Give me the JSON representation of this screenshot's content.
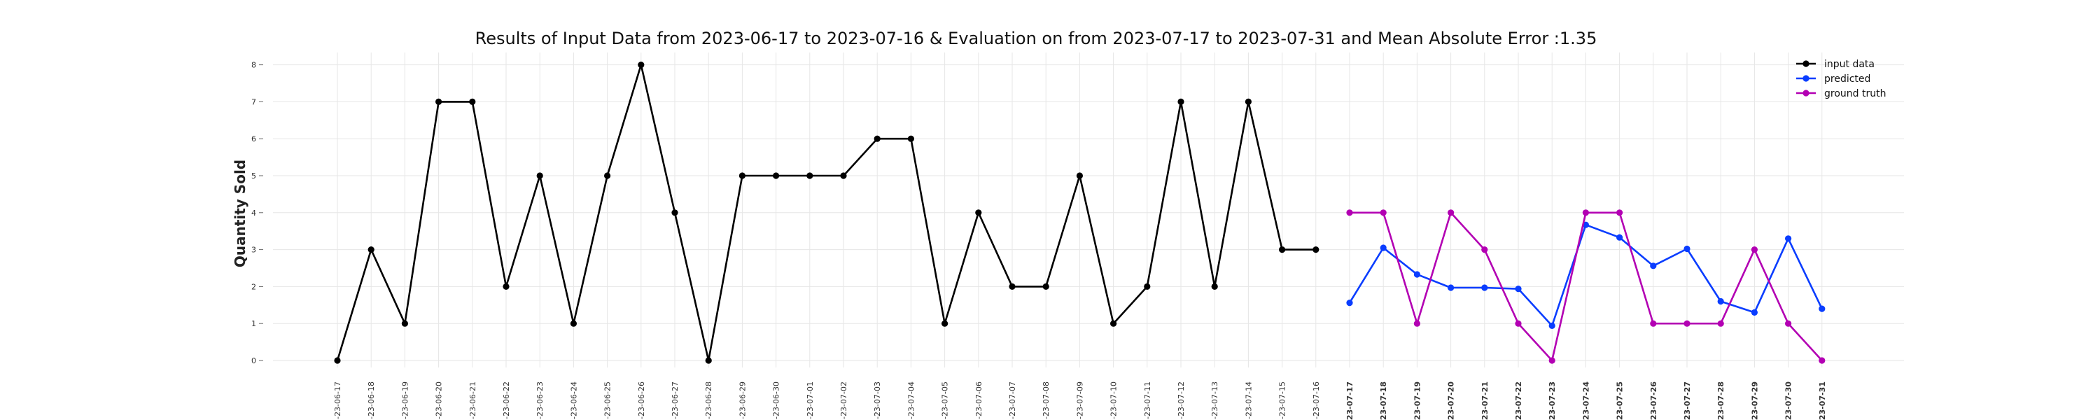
{
  "chart_data": {
    "type": "line",
    "title": "Results of Input Data from 2023-06-17 to 2023-07-16 & Evaluation on from 2023-07-17 to 2023-07-31 and Mean Absolute Error  :1.35",
    "xlabel": "",
    "ylabel": "Quantity Sold",
    "ylim": [
      0,
      8
    ],
    "yticks": [
      0,
      1,
      2,
      3,
      4,
      5,
      6,
      7,
      8
    ],
    "grid": true,
    "legend_position": "top-right",
    "categories": [
      "2023-06-17",
      "2023-06-18",
      "2023-06-19",
      "2023-06-20",
      "2023-06-21",
      "2023-06-22",
      "2023-06-23",
      "2023-06-24",
      "2023-06-25",
      "2023-06-26",
      "2023-06-27",
      "2023-06-28",
      "2023-06-29",
      "2023-06-30",
      "2023-07-01",
      "2023-07-02",
      "2023-07-03",
      "2023-07-04",
      "2023-07-05",
      "2023-07-06",
      "2023-07-07",
      "2023-07-08",
      "2023-07-09",
      "2023-07-10",
      "2023-07-11",
      "2023-07-12",
      "2023-07-13",
      "2023-07-14",
      "2023-07-15",
      "2023-07-16",
      "2023-07-17",
      "2023-07-18",
      "2023-07-19",
      "2023-07-20",
      "2023-07-21",
      "2023-07-22",
      "2023-07-23",
      "2023-07-24",
      "2023-07-25",
      "2023-07-26",
      "2023-07-27",
      "2023-07-28",
      "2023-07-29",
      "2023-07-30",
      "2023-07-31"
    ],
    "tick_labels": [
      "-23-06-17",
      "-23-06-18",
      "-23-06-19",
      "-23-06-20",
      "-23-06-21",
      "-23-06-22",
      "-23-06-23",
      "-23-06-24",
      "-23-06-25",
      "-23-06-26",
      "-23-06-27",
      "-23-06-28",
      "-23-06-29",
      "-23-06-30",
      "-23-07-01",
      "-23-07-02",
      "-23-07-03",
      "-23-07-04",
      "-23-07-05",
      "-23-07-06",
      "-23-07-07",
      "-23-07-08",
      "-23-07-09",
      "-23-07-10",
      "-23-07-11",
      "-23-07-12",
      "-23-07-13",
      "-23-07-14",
      "-23-07-15",
      "-23-07-16",
      "023-07-17",
      "023-07-18",
      "023-07-19",
      "023-07-20",
      "023-07-21",
      "023-07-22",
      "023-07-23",
      "023-07-24",
      "023-07-25",
      "023-07-26",
      "023-07-27",
      "023-07-28",
      "023-07-29",
      "023-07-30",
      "023-07-31"
    ],
    "bold_tick_from": "2023-07-17",
    "series": [
      {
        "name": "input data",
        "color": "#000000",
        "x": [
          "2023-06-17",
          "2023-06-18",
          "2023-06-19",
          "2023-06-20",
          "2023-06-21",
          "2023-06-22",
          "2023-06-23",
          "2023-06-24",
          "2023-06-25",
          "2023-06-26",
          "2023-06-27",
          "2023-06-28",
          "2023-06-29",
          "2023-06-30",
          "2023-07-01",
          "2023-07-02",
          "2023-07-03",
          "2023-07-04",
          "2023-07-05",
          "2023-07-06",
          "2023-07-07",
          "2023-07-08",
          "2023-07-09",
          "2023-07-10",
          "2023-07-11",
          "2023-07-12",
          "2023-07-13",
          "2023-07-14",
          "2023-07-15",
          "2023-07-16"
        ],
        "values": [
          0,
          3,
          1,
          7,
          7,
          2,
          5,
          1,
          5,
          8,
          4,
          0,
          5,
          5,
          5,
          5,
          6,
          6,
          1,
          4,
          2,
          2,
          5,
          1,
          2,
          7,
          2,
          7,
          3,
          3
        ]
      },
      {
        "name": "predicted",
        "color": "#0a3dff",
        "x": [
          "2023-07-17",
          "2023-07-18",
          "2023-07-19",
          "2023-07-20",
          "2023-07-21",
          "2023-07-22",
          "2023-07-23",
          "2023-07-24",
          "2023-07-25",
          "2023-07-26",
          "2023-07-27",
          "2023-07-28",
          "2023-07-29",
          "2023-07-30",
          "2023-07-31"
        ],
        "values": [
          1.56,
          3.05,
          2.33,
          1.97,
          1.97,
          1.94,
          0.94,
          3.67,
          3.33,
          2.56,
          3.02,
          1.6,
          1.3,
          3.3,
          1.4
        ]
      },
      {
        "name": "ground truth",
        "color": "#b300b3",
        "x": [
          "2023-07-17",
          "2023-07-18",
          "2023-07-19",
          "2023-07-20",
          "2023-07-21",
          "2023-07-22",
          "2023-07-23",
          "2023-07-24",
          "2023-07-25",
          "2023-07-26",
          "2023-07-27",
          "2023-07-28",
          "2023-07-29",
          "2023-07-30",
          "2023-07-31"
        ],
        "values": [
          4,
          4,
          1,
          4,
          3,
          1,
          0,
          4,
          4,
          1,
          1,
          1,
          3,
          1,
          0
        ]
      }
    ]
  }
}
